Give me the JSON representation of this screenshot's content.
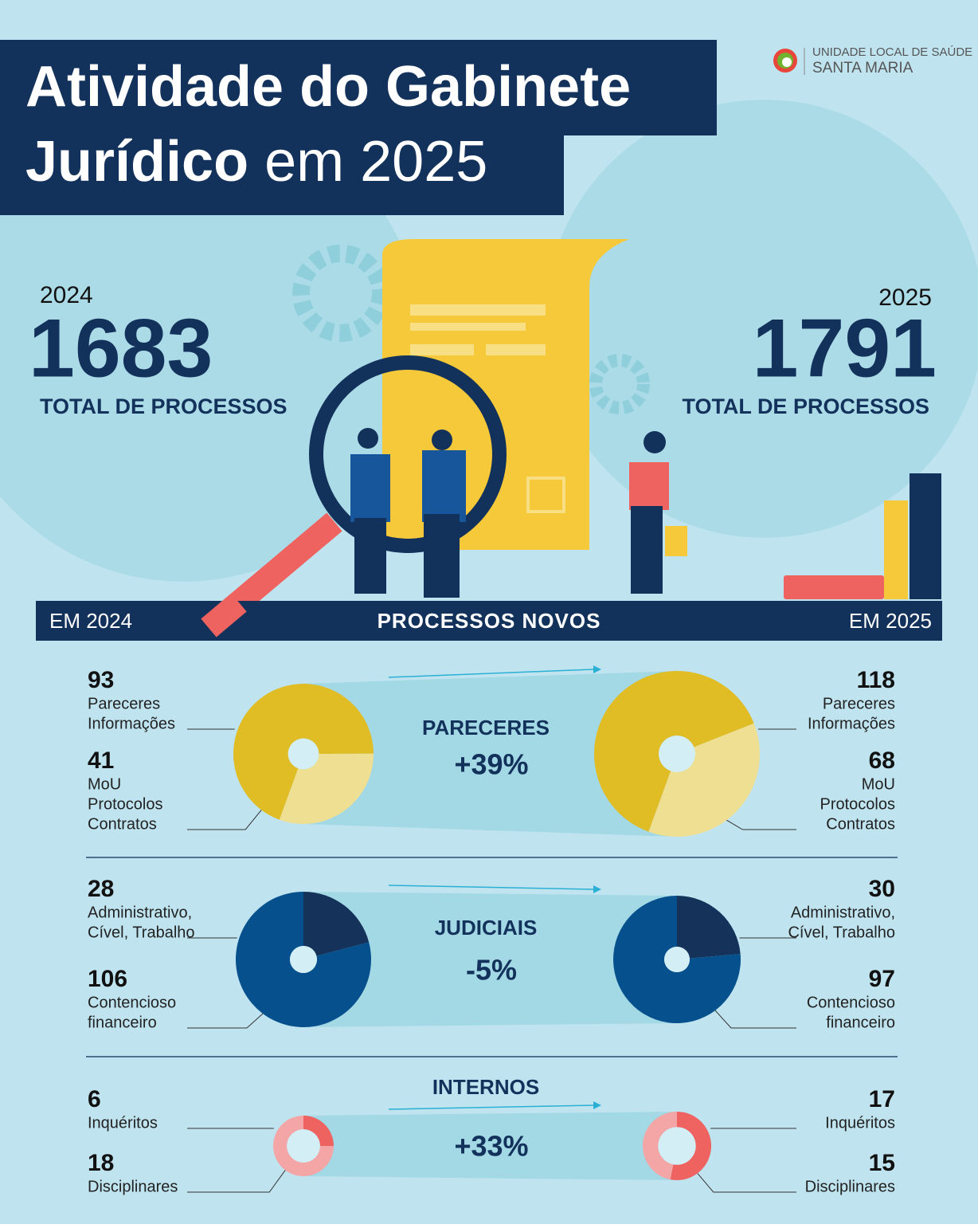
{
  "header": {
    "title_line1": "Atividade do Gabinete",
    "title_bold": "Jurídico",
    "title_rest": "em 2025"
  },
  "logo": {
    "line1": "UNIDADE LOCAL DE SAÚDE",
    "line2": "SANTA MARIA"
  },
  "totals": [
    {
      "year": "2024",
      "value": 1683,
      "label": "TOTAL DE PROCESSOS"
    },
    {
      "year": "2025",
      "value": 1791,
      "label": "TOTAL DE PROCESSOS"
    }
  ],
  "banner": {
    "left": "EM 2024",
    "center": "PROCESSOS NOVOS",
    "right": "EM 2025"
  },
  "sections": [
    {
      "title": "PARECERES",
      "change": "+39%",
      "colors": [
        "#e0bc25",
        "#efdf93"
      ],
      "left": [
        {
          "value": 93,
          "lines": [
            "Pareceres",
            "Informações"
          ]
        },
        {
          "value": 41,
          "lines": [
            "MoU",
            "Protocolos",
            "Contratos"
          ]
        }
      ],
      "right": [
        {
          "value": 118,
          "lines": [
            "Pareceres",
            "Informações"
          ]
        },
        {
          "value": 68,
          "lines": [
            "MoU",
            "Protocolos",
            "Contratos"
          ]
        }
      ]
    },
    {
      "title": "JUDICIAIS",
      "change": "-5%",
      "colors": [
        "#14325a",
        "#06508d"
      ],
      "left": [
        {
          "value": 28,
          "lines": [
            "Administrativo,",
            "Cível, Trabalho"
          ]
        },
        {
          "value": 106,
          "lines": [
            "Contencioso",
            "financeiro"
          ]
        }
      ],
      "right": [
        {
          "value": 30,
          "lines": [
            "Administrativo,",
            "Cível, Trabalho"
          ]
        },
        {
          "value": 97,
          "lines": [
            "Contencioso",
            "financeiro"
          ]
        }
      ]
    },
    {
      "title": "INTERNOS",
      "change": "+33%",
      "colors": [
        "#ee6360",
        "#f4a5a5"
      ],
      "left": [
        {
          "value": 6,
          "lines": [
            "Inquéritos"
          ]
        },
        {
          "value": 18,
          "lines": [
            "Disciplinares"
          ]
        }
      ],
      "right": [
        {
          "value": 17,
          "lines": [
            "Inquéritos"
          ]
        },
        {
          "value": 15,
          "lines": [
            "Disciplinares"
          ]
        }
      ]
    }
  ]
}
